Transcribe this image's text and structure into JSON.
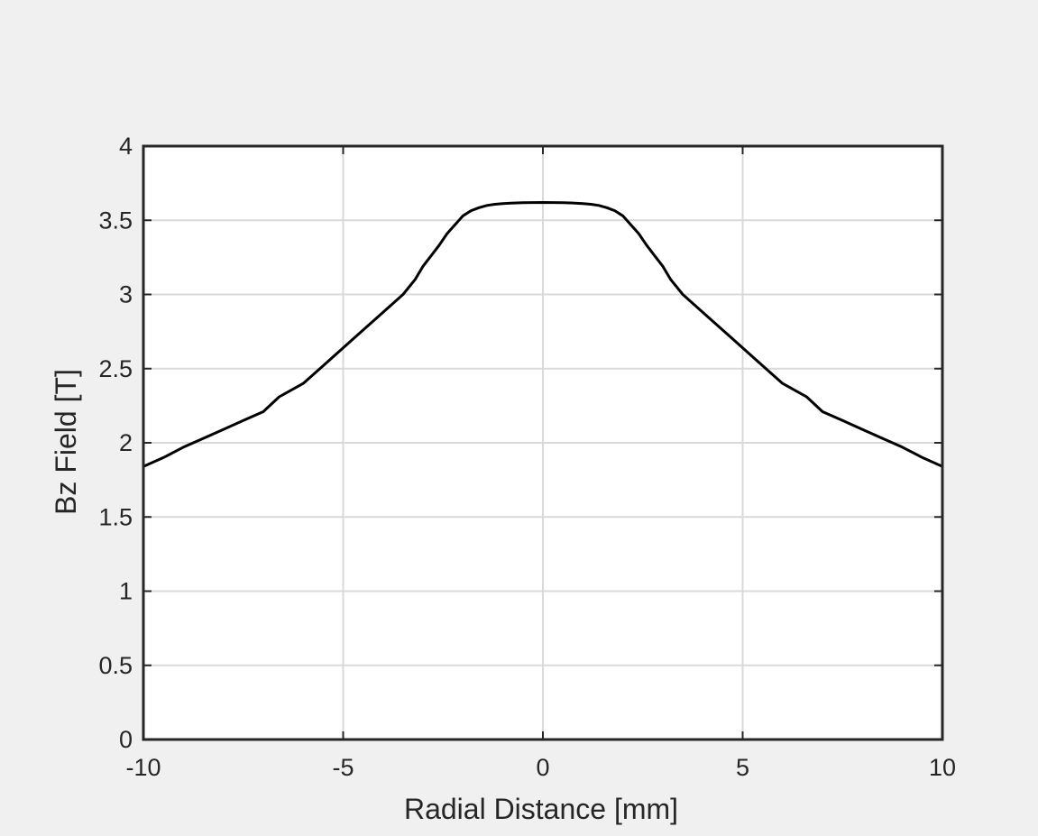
{
  "chart_data": {
    "type": "line",
    "title": "",
    "xlabel": "Radial Distance [mm]",
    "ylabel": "Bz Field [T]",
    "xlim": [
      -10,
      10
    ],
    "ylim": [
      0,
      4
    ],
    "xticks": [
      -10,
      -5,
      0,
      5,
      10
    ],
    "xtick_labels": [
      "-10",
      "-5",
      "0",
      "5",
      "10"
    ],
    "yticks": [
      0,
      0.5,
      1,
      1.5,
      2,
      2.5,
      3,
      3.5,
      4
    ],
    "ytick_labels": [
      "0",
      "0.5",
      "1",
      "1.5",
      "2",
      "2.5",
      "3",
      "3.5",
      "4"
    ],
    "grid": true,
    "legend": false,
    "line_color": "#000000",
    "series": [
      {
        "x": [
          -10,
          -9.5,
          -9,
          -8.5,
          -8,
          -7.5,
          -7,
          -6.6,
          -6,
          -5.5,
          -5,
          -4.5,
          -4,
          -3.5,
          -3.2,
          -3,
          -2.8,
          -2.6,
          -2.4,
          -2.2,
          -2,
          -1.8,
          -1.6,
          -1.4,
          -1.2,
          -1,
          -0.8,
          -0.5,
          0,
          0.5,
          0.8,
          1,
          1.2,
          1.4,
          1.6,
          1.8,
          2,
          2.2,
          2.4,
          2.6,
          2.8,
          3,
          3.2,
          3.5,
          4,
          4.5,
          5,
          5.5,
          6,
          6.6,
          7,
          7.5,
          8,
          8.5,
          9,
          9.5,
          10
        ],
        "y": [
          1.84,
          1.9,
          1.97,
          2.03,
          2.09,
          2.15,
          2.21,
          2.31,
          2.4,
          2.52,
          2.64,
          2.76,
          2.88,
          3.0,
          3.1,
          3.19,
          3.26,
          3.33,
          3.41,
          3.47,
          3.53,
          3.565,
          3.585,
          3.6,
          3.608,
          3.613,
          3.616,
          3.618,
          3.62,
          3.618,
          3.616,
          3.613,
          3.608,
          3.6,
          3.585,
          3.565,
          3.53,
          3.47,
          3.41,
          3.33,
          3.26,
          3.19,
          3.1,
          3.0,
          2.88,
          2.76,
          2.64,
          2.52,
          2.4,
          2.31,
          2.21,
          2.15,
          2.09,
          2.03,
          1.97,
          1.9,
          1.84
        ]
      }
    ]
  }
}
